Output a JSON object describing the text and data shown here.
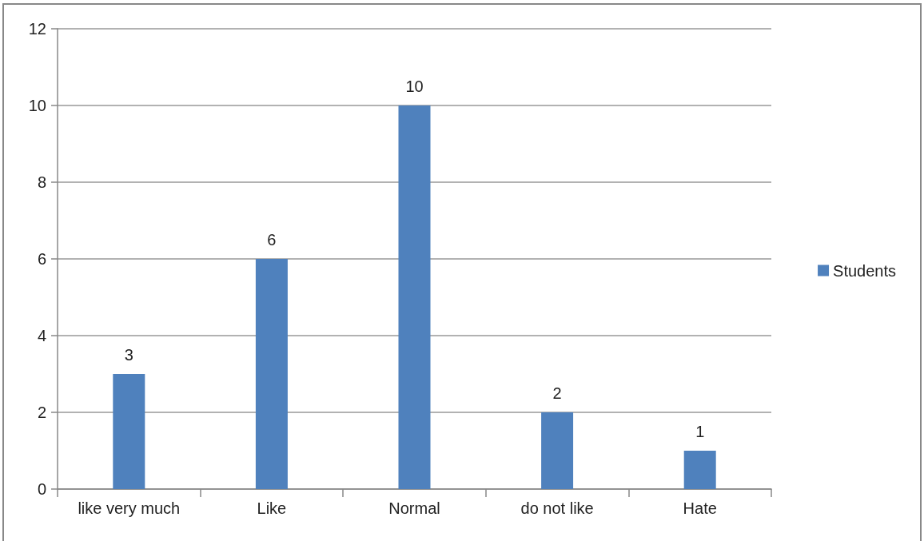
{
  "chart_data": {
    "type": "bar",
    "categories": [
      "like very much",
      "Like",
      "Normal",
      "do not like",
      "Hate"
    ],
    "series": [
      {
        "name": "Students",
        "color": "#4f81bd",
        "values": [
          3,
          6,
          10,
          2,
          1
        ]
      }
    ],
    "ylim": [
      0,
      12
    ],
    "yticks": [
      0,
      2,
      4,
      6,
      8,
      10,
      12
    ],
    "grid": "y",
    "legend": "right",
    "data_labels": true
  }
}
